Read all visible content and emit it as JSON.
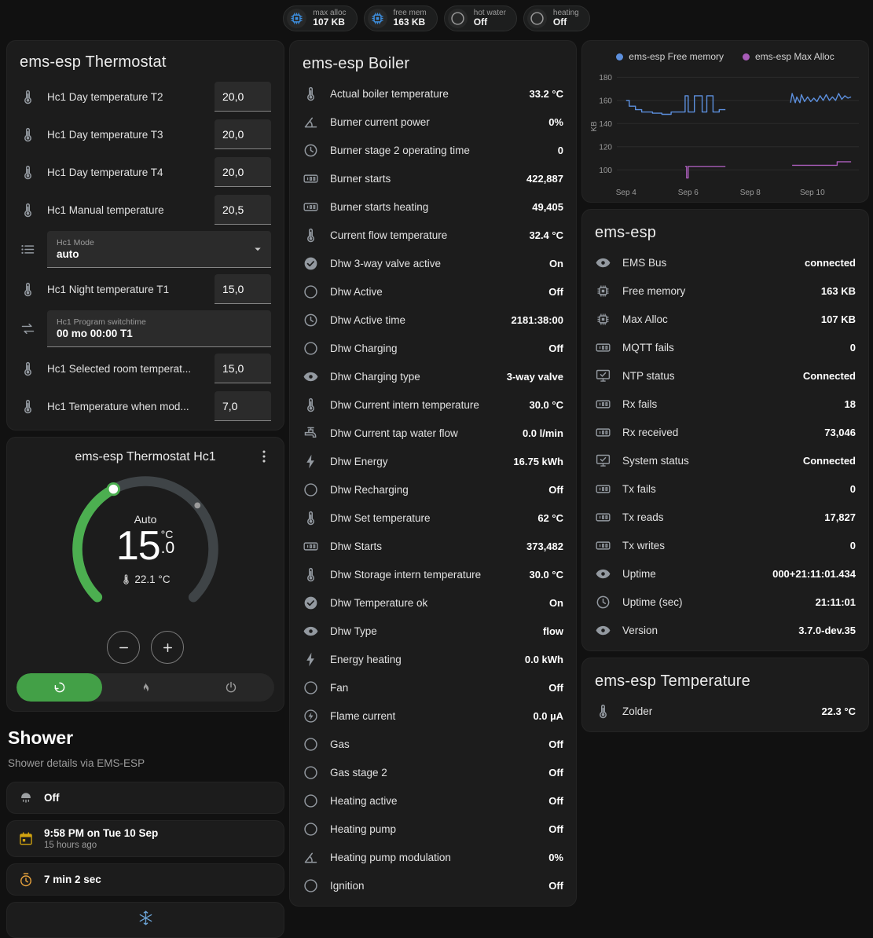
{
  "theme": {
    "accent": "#43a047",
    "arc": "#4caf50"
  },
  "header_badges": [
    {
      "icon": "chip",
      "icon_color": "#3d8fe0",
      "label": "max alloc",
      "value": "107 KB"
    },
    {
      "icon": "chip",
      "icon_color": "#3d8fe0",
      "label": "free mem",
      "value": "163 KB"
    },
    {
      "icon": "circle",
      "icon_color": "#9b9b9b",
      "label": "hot water",
      "value": "Off"
    },
    {
      "icon": "circle",
      "icon_color": "#9b9b9b",
      "label": "heating",
      "value": "Off"
    }
  ],
  "thermostat_card": {
    "title": "ems-esp Thermostat",
    "rows": [
      {
        "icon": "thermometer",
        "label": "Hc1 Day temperature T2",
        "value": "20,0",
        "type": "number"
      },
      {
        "icon": "thermometer",
        "label": "Hc1 Day temperature T3",
        "value": "20,0",
        "type": "number"
      },
      {
        "icon": "thermometer",
        "label": "Hc1 Day temperature T4",
        "value": "20,0",
        "type": "number"
      },
      {
        "icon": "thermometer",
        "label": "Hc1 Manual temperature",
        "value": "20,5",
        "type": "number"
      },
      {
        "icon": "list",
        "label": "Hc1 Mode",
        "value": "auto",
        "type": "select"
      },
      {
        "icon": "thermometer",
        "label": "Hc1 Night temperature T1",
        "value": "15,0",
        "type": "number"
      },
      {
        "icon": "swap",
        "label": "Hc1 Program switchtime",
        "value": "00 mo 00:00 T1",
        "type": "text"
      },
      {
        "icon": "thermometer",
        "label": "Hc1 Selected room temperat...",
        "value": "15,0",
        "type": "number"
      },
      {
        "icon": "thermometer",
        "label": "Hc1 Temperature when mod...",
        "value": "7,0",
        "type": "number"
      }
    ]
  },
  "hc1_card": {
    "title": "ems-esp Thermostat Hc1",
    "mode_label": "Auto",
    "temp_int": "15",
    "temp_frac": ".0",
    "temp_unit": "°C",
    "current_temp": "22.1 °C",
    "modes": [
      {
        "icon": "auto",
        "active": true
      },
      {
        "icon": "flame"
      },
      {
        "icon": "power"
      }
    ]
  },
  "shower": {
    "title": "Shower",
    "subtitle": "Shower details via EMS-ESP",
    "cards": [
      {
        "icon": "shower",
        "icon_color": "#9da0a2",
        "title": "Off",
        "subtitle": ""
      },
      {
        "icon": "calendar",
        "icon_color": "#d2a410",
        "title": "9:58 PM on Tue 10 Sep",
        "subtitle": "15 hours ago"
      },
      {
        "icon": "timer",
        "icon_color": "#e8a33d",
        "title": "7 min 2 sec",
        "subtitle": ""
      }
    ],
    "frost_icon_color": "#6ba3d6"
  },
  "boiler_card": {
    "title": "ems-esp Boiler",
    "rows": [
      {
        "icon": "thermometer",
        "label": "Actual boiler temperature",
        "value": "33.2 °C"
      },
      {
        "icon": "angle",
        "label": "Burner current power",
        "value": "0%"
      },
      {
        "icon": "clock",
        "label": "Burner stage 2 operating time",
        "value": "0"
      },
      {
        "icon": "counter",
        "label": "Burner starts",
        "value": "422,887"
      },
      {
        "icon": "counter",
        "label": "Burner starts heating",
        "value": "49,405"
      },
      {
        "icon": "thermometer",
        "label": "Current flow temperature",
        "value": "32.4 °C"
      },
      {
        "icon": "check-circle",
        "label": "Dhw 3-way valve active",
        "value": "On"
      },
      {
        "icon": "circle",
        "label": "Dhw Active",
        "value": "Off"
      },
      {
        "icon": "clock",
        "label": "Dhw Active time",
        "value": "2181:38:00"
      },
      {
        "icon": "circle",
        "label": "Dhw Charging",
        "value": "Off"
      },
      {
        "icon": "eye",
        "label": "Dhw Charging type",
        "value": "3-way valve"
      },
      {
        "icon": "thermometer",
        "label": "Dhw Current intern temperature",
        "value": "30.0 °C"
      },
      {
        "icon": "faucet",
        "label": "Dhw Current tap water flow",
        "value": "0.0 l/min"
      },
      {
        "icon": "flash",
        "label": "Dhw Energy",
        "value": "16.75 kWh"
      },
      {
        "icon": "circle",
        "label": "Dhw Recharging",
        "value": "Off"
      },
      {
        "icon": "thermometer",
        "label": "Dhw Set temperature",
        "value": "62 °C"
      },
      {
        "icon": "counter",
        "label": "Dhw Starts",
        "value": "373,482"
      },
      {
        "icon": "thermometer",
        "label": "Dhw Storage intern temperature",
        "value": "30.0 °C"
      },
      {
        "icon": "check-circle",
        "label": "Dhw Temperature ok",
        "value": "On"
      },
      {
        "icon": "eye",
        "label": "Dhw Type",
        "value": "flow"
      },
      {
        "icon": "flash",
        "label": "Energy heating",
        "value": "0.0 kWh"
      },
      {
        "icon": "circle",
        "label": "Fan",
        "value": "Off"
      },
      {
        "icon": "current",
        "label": "Flame current",
        "value": "0.0 µA"
      },
      {
        "icon": "circle",
        "label": "Gas",
        "value": "Off"
      },
      {
        "icon": "circle",
        "label": "Gas stage 2",
        "value": "Off"
      },
      {
        "icon": "circle",
        "label": "Heating active",
        "value": "Off"
      },
      {
        "icon": "circle",
        "label": "Heating pump",
        "value": "Off"
      },
      {
        "icon": "angle",
        "label": "Heating pump modulation",
        "value": "0%"
      },
      {
        "icon": "circle",
        "label": "Ignition",
        "value": "Off"
      }
    ]
  },
  "emsesp_card": {
    "title": "ems-esp",
    "rows": [
      {
        "icon": "eye",
        "label": "EMS Bus",
        "value": "connected"
      },
      {
        "icon": "chip",
        "label": "Free memory",
        "value": "163 KB"
      },
      {
        "icon": "chip",
        "label": "Max Alloc",
        "value": "107 KB"
      },
      {
        "icon": "counter",
        "label": "MQTT fails",
        "value": "0"
      },
      {
        "icon": "network",
        "label": "NTP status",
        "value": "Connected"
      },
      {
        "icon": "counter",
        "label": "Rx fails",
        "value": "18"
      },
      {
        "icon": "counter",
        "label": "Rx received",
        "value": "73,046"
      },
      {
        "icon": "network",
        "label": "System status",
        "value": "Connected"
      },
      {
        "icon": "counter",
        "label": "Tx fails",
        "value": "0"
      },
      {
        "icon": "counter",
        "label": "Tx reads",
        "value": "17,827"
      },
      {
        "icon": "counter",
        "label": "Tx writes",
        "value": "0"
      },
      {
        "icon": "eye",
        "label": "Uptime",
        "value": "000+21:11:01.434"
      },
      {
        "icon": "clock",
        "label": "Uptime (sec)",
        "value": "21:11:01"
      },
      {
        "icon": "eye",
        "label": "Version",
        "value": "3.7.0-dev.35"
      }
    ]
  },
  "temperature_card": {
    "title": "ems-esp Temperature",
    "rows": [
      {
        "icon": "thermometer",
        "label": "Zolder",
        "value": "22.3 °C"
      }
    ]
  },
  "chart_data": {
    "type": "line",
    "title": "",
    "xlabel": "",
    "ylabel": "KB",
    "xlim": [
      3.7,
      11.5
    ],
    "ylim": [
      90,
      185
    ],
    "yticks": [
      100,
      120,
      140,
      160,
      180
    ],
    "xticks": [
      {
        "v": 4,
        "label": "Sep 4"
      },
      {
        "v": 6,
        "label": "Sep 6"
      },
      {
        "v": 8,
        "label": "Sep 8"
      },
      {
        "v": 10,
        "label": "Sep 10"
      }
    ],
    "legend_items": [
      {
        "label": "ems-esp Free memory",
        "color": "#5c8fdd"
      },
      {
        "label": "ems-esp Max Alloc",
        "color": "#a85cb8"
      }
    ],
    "series": [
      {
        "name": "ems-esp Free memory",
        "color": "#5c8fdd",
        "segments": [
          [
            [
              4.0,
              160
            ],
            [
              4.1,
              160
            ],
            [
              4.1,
              155
            ],
            [
              4.3,
              155
            ],
            [
              4.3,
              152
            ],
            [
              4.5,
              152
            ],
            [
              4.5,
              150
            ],
            [
              4.85,
              150
            ],
            [
              4.85,
              149
            ],
            [
              5.15,
              149
            ],
            [
              5.15,
              148
            ],
            [
              5.45,
              148
            ],
            [
              5.45,
              150
            ],
            [
              5.9,
              150
            ],
            [
              5.9,
              164
            ],
            [
              6.0,
              164
            ],
            [
              6.0,
              150
            ],
            [
              6.2,
              150
            ],
            [
              6.2,
              164
            ],
            [
              6.45,
              164
            ],
            [
              6.45,
              150
            ],
            [
              6.6,
              150
            ],
            [
              6.6,
              164
            ],
            [
              6.8,
              164
            ],
            [
              6.8,
              150
            ],
            [
              7.0,
              150
            ],
            [
              7.0,
              152
            ],
            [
              7.2,
              152
            ]
          ],
          [
            [
              9.3,
              158
            ],
            [
              9.35,
              166
            ],
            [
              9.45,
              158
            ],
            [
              9.5,
              163
            ],
            [
              9.6,
              158
            ],
            [
              9.65,
              165
            ],
            [
              9.75,
              159
            ],
            [
              9.85,
              163
            ],
            [
              9.95,
              159
            ],
            [
              10.05,
              162
            ],
            [
              10.15,
              159
            ],
            [
              10.25,
              164
            ],
            [
              10.35,
              160
            ],
            [
              10.45,
              165
            ],
            [
              10.55,
              160
            ],
            [
              10.65,
              163
            ],
            [
              10.75,
              160
            ],
            [
              10.85,
              166
            ],
            [
              10.95,
              161
            ],
            [
              11.05,
              164
            ],
            [
              11.15,
              162
            ],
            [
              11.25,
              163
            ]
          ]
        ]
      },
      {
        "name": "ems-esp Max Alloc",
        "color": "#a85cb8",
        "segments": [
          [
            [
              5.9,
              103
            ],
            [
              5.95,
              103
            ],
            [
              5.95,
              93
            ],
            [
              6.0,
              93
            ],
            [
              6.0,
              103
            ],
            [
              7.2,
              103
            ]
          ],
          [
            [
              9.35,
              104
            ],
            [
              10.8,
              104
            ],
            [
              10.8,
              107
            ],
            [
              11.25,
              107
            ]
          ]
        ]
      }
    ]
  }
}
